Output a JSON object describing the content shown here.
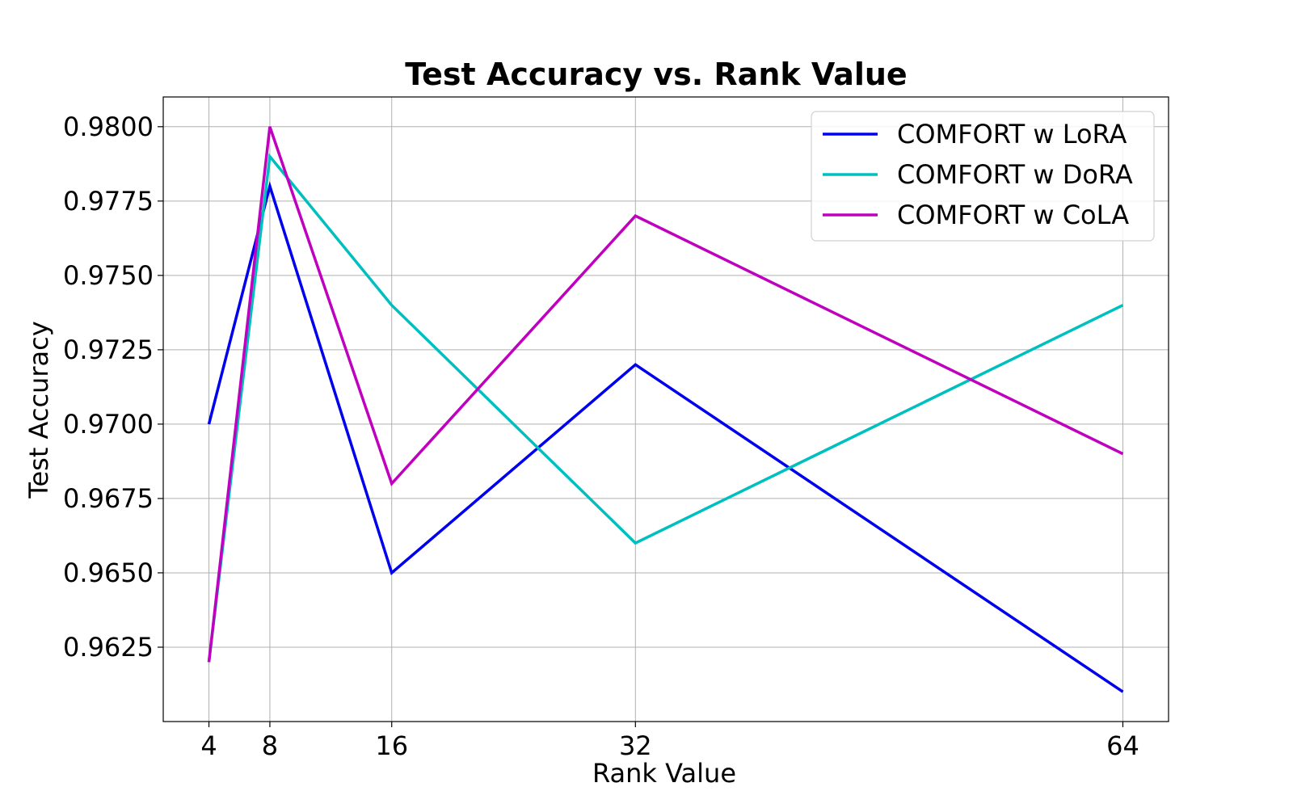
{
  "chart_data": {
    "type": "line",
    "title": "Test Accuracy vs. Rank Value",
    "xlabel": "Rank Value",
    "ylabel": "Test Accuracy",
    "x": [
      4,
      8,
      16,
      32,
      64
    ],
    "x_ticks": [
      "4",
      "8",
      "16",
      "32",
      "64"
    ],
    "y_ticks": [
      "0.9625",
      "0.9650",
      "0.9675",
      "0.9700",
      "0.9725",
      "0.9750",
      "0.9775",
      "0.9800"
    ],
    "xlim": [
      1,
      67
    ],
    "ylim": [
      0.96,
      0.981
    ],
    "grid": true,
    "legend_position": "top-right",
    "series": [
      {
        "name": "COMFORT w LoRA",
        "color": "#0000ee",
        "values": [
          0.97,
          0.978,
          0.965,
          0.972,
          0.961
        ]
      },
      {
        "name": "COMFORT w DoRA",
        "color": "#00bfbf",
        "values": [
          0.962,
          0.979,
          0.974,
          0.966,
          0.974
        ]
      },
      {
        "name": "COMFORT w CoLA",
        "color": "#bf00bf",
        "values": [
          0.962,
          0.98,
          0.968,
          0.977,
          0.969
        ]
      }
    ]
  }
}
